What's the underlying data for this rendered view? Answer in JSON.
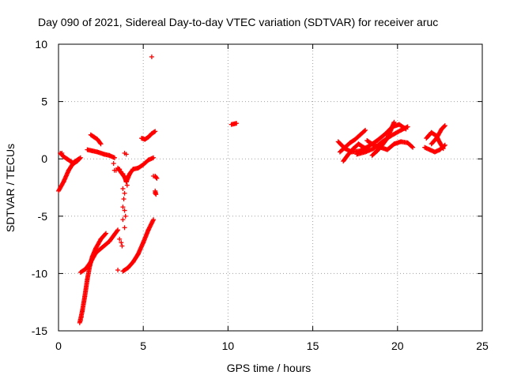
{
  "chart_data": {
    "type": "scatter",
    "title": "Day 090 of 2021, Sidereal Day-to-day VTEC variation (SDTVAR) for receiver aruc",
    "xlabel": "GPS time / hours",
    "ylabel": "SDTVAR / TECUs",
    "xlim": [
      0,
      25
    ],
    "ylim": [
      -15,
      10
    ],
    "xticks": [
      0,
      5,
      10,
      15,
      20,
      25
    ],
    "xtick_labels": [
      "0",
      "5",
      "10",
      "15",
      "20",
      "25"
    ],
    "yticks": [
      -15,
      -10,
      -5,
      0,
      5,
      10
    ],
    "ytick_labels": [
      "-15",
      "-10",
      "-5",
      "0",
      "5",
      "10"
    ],
    "grid": true,
    "marker": "+",
    "color": "#ff0000",
    "series": [
      {
        "name": "SDTVAR",
        "segments": [
          [
            [
              0,
              -2.8
            ],
            [
              0.3,
              -2.0
            ],
            [
              0.6,
              -1.0
            ],
            [
              0.9,
              -0.3
            ],
            [
              1.2,
              0.0
            ]
          ],
          [
            [
              0.1,
              0.5
            ],
            [
              0.3,
              0.2
            ],
            [
              0.5,
              0.0
            ],
            [
              0.7,
              -0.2
            ],
            [
              0.9,
              -0.4
            ],
            [
              1.1,
              -0.2
            ],
            [
              1.3,
              0.1
            ]
          ],
          [
            [
              1.25,
              -14.3
            ],
            [
              1.4,
              -13.3
            ],
            [
              1.55,
              -12.0
            ],
            [
              1.7,
              -10.5
            ],
            [
              1.85,
              -9.3
            ],
            [
              2.0,
              -8.5
            ],
            [
              2.2,
              -7.8
            ],
            [
              2.5,
              -7.0
            ],
            [
              2.8,
              -6.5
            ]
          ],
          [
            [
              1.3,
              -9.9
            ],
            [
              1.6,
              -9.6
            ],
            [
              1.9,
              -9.0
            ],
            [
              2.2,
              -8.2
            ],
            [
              2.6,
              -7.7
            ],
            [
              3.0,
              -7.2
            ],
            [
              3.5,
              -6.2
            ]
          ],
          [
            [
              1.7,
              0.8
            ],
            [
              2.0,
              0.7
            ],
            [
              2.3,
              0.6
            ],
            [
              2.7,
              0.4
            ],
            [
              3.0,
              0.3
            ],
            [
              3.3,
              0.1
            ]
          ],
          [
            [
              1.9,
              2.1
            ],
            [
              2.1,
              1.9
            ],
            [
              2.3,
              1.7
            ],
            [
              2.5,
              1.3
            ]
          ],
          [
            [
              3.5,
              -0.8
            ],
            [
              3.7,
              -1.2
            ],
            [
              3.9,
              -1.6
            ],
            [
              4.0,
              -2.0
            ],
            [
              4.2,
              -1.3
            ],
            [
              4.4,
              -0.9
            ],
            [
              4.7,
              -0.8
            ],
            [
              5.0,
              -0.5
            ],
            [
              5.3,
              -0.1
            ],
            [
              5.6,
              0.1
            ]
          ],
          [
            [
              3.8,
              -9.8
            ],
            [
              4.1,
              -9.5
            ],
            [
              4.4,
              -9.0
            ],
            [
              4.7,
              -8.3
            ],
            [
              5.0,
              -7.3
            ],
            [
              5.3,
              -6.2
            ],
            [
              5.6,
              -5.3
            ]
          ],
          [
            [
              4.9,
              1.8
            ],
            [
              5.1,
              1.7
            ],
            [
              5.3,
              1.9
            ],
            [
              5.5,
              2.2
            ],
            [
              5.7,
              2.4
            ]
          ],
          [
            [
              5.7,
              -1.5
            ],
            [
              5.8,
              -1.7
            ]
          ],
          [
            [
              5.7,
              -2.8
            ],
            [
              5.75,
              -3.1
            ]
          ],
          [
            [
              10.2,
              3.0
            ],
            [
              10.5,
              3.1
            ]
          ],
          [
            [
              16.5,
              1.5
            ],
            [
              16.9,
              0.9
            ],
            [
              17.3,
              0.6
            ],
            [
              17.8,
              0.7
            ],
            [
              18.3,
              1.1
            ],
            [
              18.8,
              1.6
            ],
            [
              19.3,
              2.2
            ],
            [
              19.7,
              2.8
            ],
            [
              20.1,
              3.0
            ],
            [
              20.5,
              2.6
            ]
          ],
          [
            [
              16.6,
              0.6
            ],
            [
              16.9,
              1.0
            ],
            [
              17.2,
              1.4
            ],
            [
              17.5,
              1.7
            ],
            [
              17.8,
              2.1
            ],
            [
              18.1,
              2.5
            ]
          ],
          [
            [
              16.8,
              -0.2
            ],
            [
              17.1,
              0.4
            ],
            [
              17.4,
              0.9
            ],
            [
              17.7,
              1.3
            ],
            [
              18.0,
              1.0
            ],
            [
              18.3,
              0.8
            ]
          ],
          [
            [
              17.6,
              0.4
            ],
            [
              18.1,
              0.6
            ],
            [
              18.6,
              0.9
            ],
            [
              19.1,
              1.5
            ],
            [
              19.6,
              2.0
            ],
            [
              20.2,
              2.5
            ],
            [
              20.6,
              2.8
            ]
          ],
          [
            [
              18.2,
              1.6
            ],
            [
              18.6,
              1.2
            ],
            [
              19.0,
              1.0
            ],
            [
              19.4,
              0.8
            ],
            [
              19.8,
              1.3
            ],
            [
              20.2,
              1.5
            ],
            [
              20.6,
              1.4
            ],
            [
              20.9,
              1.0
            ]
          ],
          [
            [
              18.5,
              0.3
            ],
            [
              18.8,
              0.7
            ],
            [
              19.1,
              1.2
            ],
            [
              19.4,
              1.8
            ],
            [
              19.6,
              2.5
            ],
            [
              19.8,
              3.2
            ]
          ],
          [
            [
              21.6,
              1.0
            ],
            [
              21.9,
              0.8
            ],
            [
              22.2,
              0.6
            ],
            [
              22.5,
              0.8
            ],
            [
              22.8,
              1.2
            ]
          ],
          [
            [
              21.7,
              1.8
            ],
            [
              22.0,
              2.3
            ],
            [
              22.3,
              2.0
            ],
            [
              22.5,
              1.4
            ],
            [
              22.7,
              0.9
            ]
          ],
          [
            [
              22.0,
              1.3
            ],
            [
              22.3,
              1.8
            ],
            [
              22.6,
              2.6
            ],
            [
              22.8,
              2.9
            ]
          ]
        ]
      }
    ],
    "outliers": [
      [
        5.5,
        8.9
      ],
      [
        3.3,
        0.1
      ],
      [
        3.4,
        -1.0
      ],
      [
        3.6,
        -0.9
      ],
      [
        3.8,
        -1.3
      ],
      [
        3.9,
        -1.5
      ],
      [
        4.0,
        -2.0
      ],
      [
        4.05,
        -2.3
      ],
      [
        3.8,
        -2.6
      ],
      [
        3.9,
        -3.0
      ],
      [
        3.85,
        -3.5
      ],
      [
        3.8,
        -4.2
      ],
      [
        3.9,
        -4.5
      ],
      [
        3.95,
        -5.0
      ],
      [
        3.8,
        -5.3
      ],
      [
        3.9,
        -6.0
      ],
      [
        3.6,
        -7.0
      ],
      [
        3.7,
        -7.3
      ],
      [
        3.75,
        -7.6
      ],
      [
        3.5,
        -9.7
      ],
      [
        3.3,
        -1.0
      ],
      [
        3.25,
        -0.4
      ],
      [
        4.0,
        0.4
      ],
      [
        3.9,
        0.5
      ],
      [
        1.3,
        -14.1
      ],
      [
        1.35,
        -13.8
      ],
      [
        0.2,
        0.5
      ],
      [
        5.7,
        -3.0
      ],
      [
        5.6,
        -1.5
      ]
    ]
  }
}
